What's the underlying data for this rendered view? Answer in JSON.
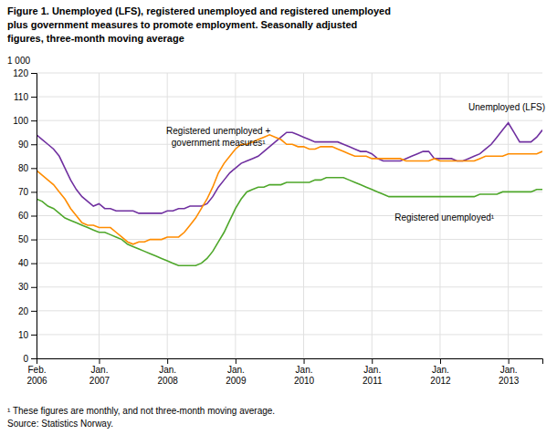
{
  "chart_data": {
    "type": "line",
    "title": "Figure 1. Unemployed (LFS), registered unemployed and registered unemployed\nplus government measures to promote employment. Seasonally adjusted\nfigures, three-month moving average",
    "ylabel": "1 000",
    "footnote": "¹ These figures are monthly, and not three-month moving average.\nSource: Statistics Norway.",
    "categories": [
      "Feb.\n2006",
      null,
      null,
      null,
      null,
      null,
      null,
      null,
      null,
      null,
      null,
      "Jan.\n2007",
      null,
      null,
      null,
      null,
      null,
      null,
      null,
      null,
      null,
      null,
      null,
      "Jan.\n2008",
      null,
      null,
      null,
      null,
      null,
      null,
      null,
      null,
      null,
      null,
      null,
      "Jan.\n2009",
      null,
      null,
      null,
      null,
      null,
      null,
      null,
      null,
      null,
      null,
      null,
      "Jan.\n2010",
      null,
      null,
      null,
      null,
      null,
      null,
      null,
      null,
      null,
      null,
      null,
      "Jan.\n2011",
      null,
      null,
      null,
      null,
      null,
      null,
      null,
      null,
      null,
      null,
      null,
      "Jan.\n2012",
      null,
      null,
      null,
      null,
      null,
      null,
      null,
      null,
      null,
      null,
      null,
      "Jan.\n2013",
      null,
      null,
      null,
      null,
      null,
      null
    ],
    "series": [
      {
        "color": "#7030A0",
        "values": [
          94,
          92,
          90,
          88,
          85,
          80,
          75,
          71,
          68,
          66,
          64,
          65,
          63,
          63,
          62,
          62,
          62,
          62,
          61,
          61,
          61,
          61,
          61,
          62,
          62,
          63,
          63,
          64,
          64,
          64,
          65,
          68,
          72,
          75,
          78,
          80,
          82,
          83,
          84,
          85,
          87,
          89,
          91,
          93,
          95,
          95,
          94,
          93,
          92,
          91,
          91,
          91,
          91,
          91,
          90,
          89,
          88,
          87,
          87,
          86,
          84,
          83,
          83,
          83,
          83,
          84,
          85,
          86,
          87,
          87,
          84,
          84,
          84,
          84,
          83,
          83,
          84,
          85,
          86,
          88,
          90,
          93,
          96,
          99,
          95,
          91,
          91,
          91,
          93,
          96
        ]
      },
      {
        "color": "#FF8C00",
        "values": [
          79,
          77,
          75,
          73,
          70,
          67,
          63,
          60,
          57,
          56,
          56,
          55,
          55,
          55,
          53,
          51,
          49,
          48,
          49,
          49,
          50,
          50,
          50,
          51,
          51,
          51,
          53,
          56,
          59,
          63,
          67,
          72,
          78,
          82,
          85,
          88,
          90,
          90,
          91,
          92,
          93,
          94,
          93,
          92,
          90,
          90,
          89,
          89,
          88,
          88,
          89,
          89,
          89,
          88,
          87,
          86,
          85,
          85,
          85,
          84,
          84,
          84,
          84,
          84,
          84,
          83,
          83,
          83,
          83,
          83,
          84,
          83,
          83,
          83,
          83,
          83,
          83,
          83,
          84,
          85,
          85,
          85,
          85,
          86,
          86,
          86,
          86,
          86,
          86,
          87
        ]
      },
      {
        "color": "#4EA72A",
        "values": [
          67,
          66,
          64,
          63,
          61,
          59,
          58,
          57,
          56,
          55,
          54,
          53,
          53,
          52,
          51,
          50,
          48,
          47,
          46,
          45,
          44,
          43,
          42,
          41,
          40,
          39,
          39,
          39,
          39,
          40,
          42,
          45,
          49,
          53,
          58,
          63,
          67,
          70,
          71,
          72,
          72,
          73,
          73,
          73,
          74,
          74,
          74,
          74,
          74,
          75,
          75,
          76,
          76,
          76,
          76,
          75,
          74,
          73,
          72,
          71,
          70,
          69,
          68,
          68,
          68,
          68,
          68,
          68,
          68,
          68,
          68,
          68,
          68,
          68,
          68,
          68,
          68,
          68,
          69,
          69,
          69,
          69,
          70,
          70,
          70,
          70,
          70,
          70,
          71,
          71
        ]
      }
    ],
    "annotations": [
      {
        "text": "Unemployed (LFS)",
        "x": 76,
        "y": 103
      },
      {
        "text": "Registered unemployed +\ngovernment measures¹",
        "x": 32,
        "y": 88
      },
      {
        "text": "Registered unemployed¹",
        "x": 63,
        "y": 62
      }
    ],
    "ylim": [
      0,
      120
    ],
    "yticks": [
      0,
      10,
      20,
      30,
      40,
      50,
      60,
      70,
      80,
      90,
      100,
      110,
      120
    ],
    "grid": true
  }
}
